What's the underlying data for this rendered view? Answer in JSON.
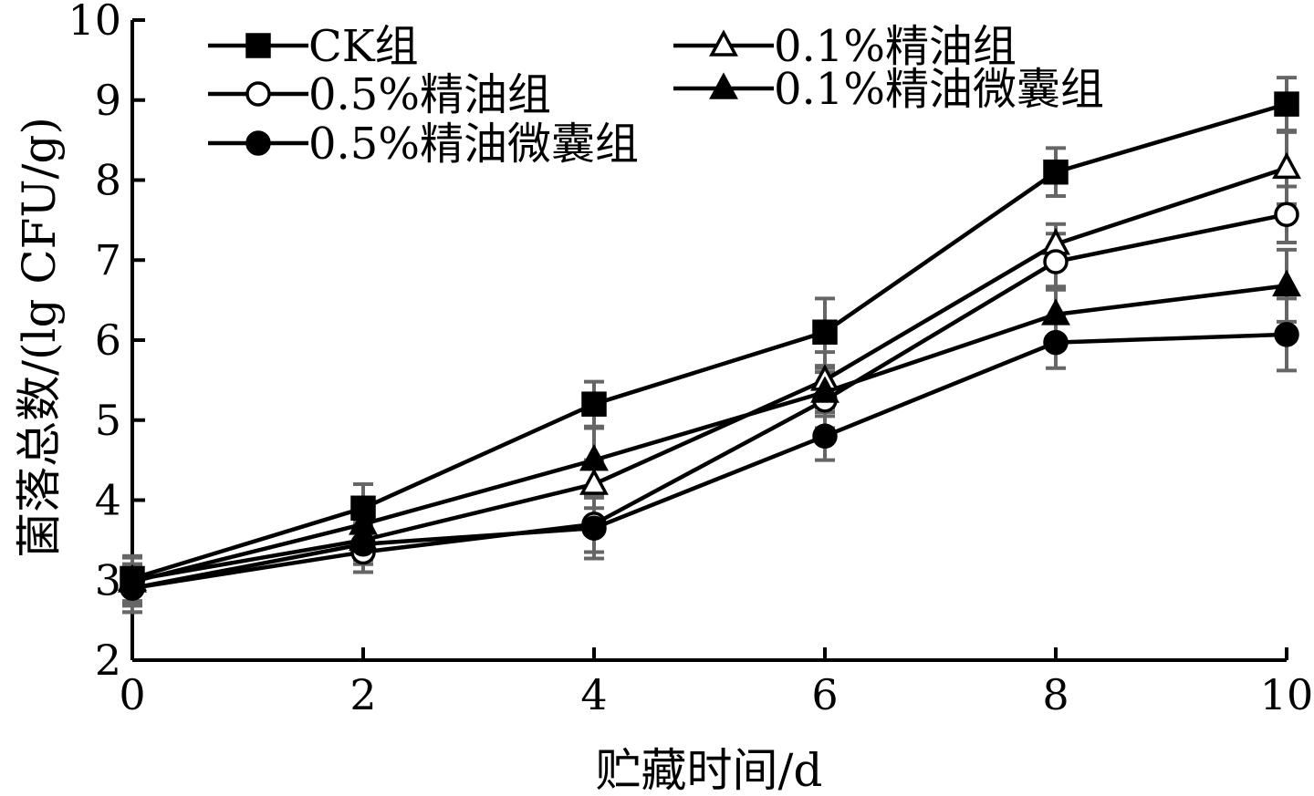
{
  "chart_data": {
    "type": "line",
    "title": "",
    "xlabel": "贮藏时间/d",
    "ylabel": "菌落总数/(lg CFU/g)",
    "xlim": [
      0,
      10
    ],
    "ylim": [
      2,
      10
    ],
    "x_ticks": [
      0,
      2,
      4,
      6,
      8,
      10
    ],
    "y_ticks": [
      2,
      3,
      4,
      5,
      6,
      7,
      8,
      9,
      10
    ],
    "grid": false,
    "legend_position": "top-left",
    "x": [
      0,
      2,
      4,
      6,
      8,
      10
    ],
    "series": [
      {
        "name": "CK组",
        "marker": "square-filled",
        "values": [
          3.02,
          3.9,
          5.2,
          6.1,
          8.1,
          8.95
        ],
        "errors": [
          0.28,
          0.3,
          0.28,
          0.42,
          0.3,
          0.33
        ]
      },
      {
        "name": "0.1%精油组",
        "marker": "triangle-open",
        "values": [
          3.0,
          3.5,
          4.2,
          5.5,
          7.2,
          8.15
        ],
        "errors": [
          0.3,
          0.25,
          0.3,
          0.35,
          0.25,
          0.45
        ]
      },
      {
        "name": "0.5%精油组",
        "marker": "circle-open",
        "values": [
          2.9,
          3.35,
          3.7,
          5.25,
          6.98,
          7.57
        ],
        "errors": [
          0.3,
          0.25,
          0.35,
          0.35,
          0.35,
          0.35
        ]
      },
      {
        "name": "0.1%精油微囊组",
        "marker": "triangle-filled",
        "values": [
          2.98,
          3.7,
          4.5,
          5.35,
          6.32,
          6.68
        ],
        "errors": [
          0.3,
          0.25,
          0.4,
          0.3,
          0.35,
          0.45
        ]
      },
      {
        "name": "0.5%精油微囊组",
        "marker": "circle-filled",
        "values": [
          2.9,
          3.45,
          3.65,
          4.8,
          5.97,
          6.07
        ],
        "errors": [
          0.3,
          0.25,
          0.38,
          0.3,
          0.32,
          0.45
        ]
      }
    ]
  }
}
